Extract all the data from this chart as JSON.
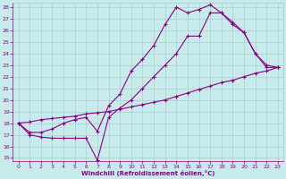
{
  "xlabel": "Windchill (Refroidissement éolien,°C)",
  "bg_color": "#c8eaea",
  "line_color": "#880088",
  "xlim": [
    -0.5,
    23.5
  ],
  "ylim": [
    14.7,
    28.4
  ],
  "yticks": [
    15,
    16,
    17,
    18,
    19,
    20,
    21,
    22,
    23,
    24,
    25,
    26,
    27,
    28
  ],
  "xticks": [
    0,
    1,
    2,
    3,
    4,
    5,
    6,
    7,
    8,
    9,
    10,
    11,
    12,
    13,
    14,
    15,
    16,
    17,
    18,
    19,
    20,
    21,
    22,
    23
  ],
  "line1_x": [
    0,
    1,
    2,
    3,
    4,
    5,
    6,
    7,
    8,
    9,
    10,
    11,
    12,
    13,
    14,
    15,
    16,
    17,
    18,
    19,
    20,
    21,
    22,
    23
  ],
  "line1_y": [
    18.0,
    18.1,
    18.3,
    18.4,
    18.5,
    18.6,
    18.8,
    18.9,
    19.0,
    19.2,
    19.4,
    19.6,
    19.8,
    20.0,
    20.3,
    20.6,
    20.9,
    21.2,
    21.5,
    21.7,
    22.0,
    22.3,
    22.5,
    22.8
  ],
  "line2_x": [
    0,
    1,
    2,
    3,
    4,
    5,
    6,
    7,
    8,
    9,
    10,
    11,
    12,
    13,
    14,
    15,
    16,
    17,
    18,
    19,
    20,
    21,
    22,
    23
  ],
  "line2_y": [
    18.0,
    17.0,
    16.8,
    16.7,
    16.7,
    16.7,
    16.7,
    14.8,
    18.5,
    19.3,
    20.0,
    21.0,
    22.0,
    23.0,
    24.0,
    25.5,
    25.5,
    27.5,
    27.5,
    26.5,
    25.8,
    24.0,
    23.0,
    22.8
  ],
  "line3_x": [
    0,
    1,
    2,
    3,
    4,
    5,
    6,
    7,
    8,
    9,
    10,
    11,
    12,
    13,
    14,
    15,
    16,
    17,
    18,
    19,
    20,
    21,
    22,
    23
  ],
  "line3_y": [
    18.0,
    17.2,
    17.2,
    17.5,
    18.0,
    18.3,
    18.5,
    17.3,
    19.5,
    20.5,
    22.5,
    23.5,
    24.7,
    26.5,
    28.0,
    27.5,
    27.8,
    28.2,
    27.5,
    26.7,
    25.8,
    24.0,
    22.8,
    22.8
  ]
}
